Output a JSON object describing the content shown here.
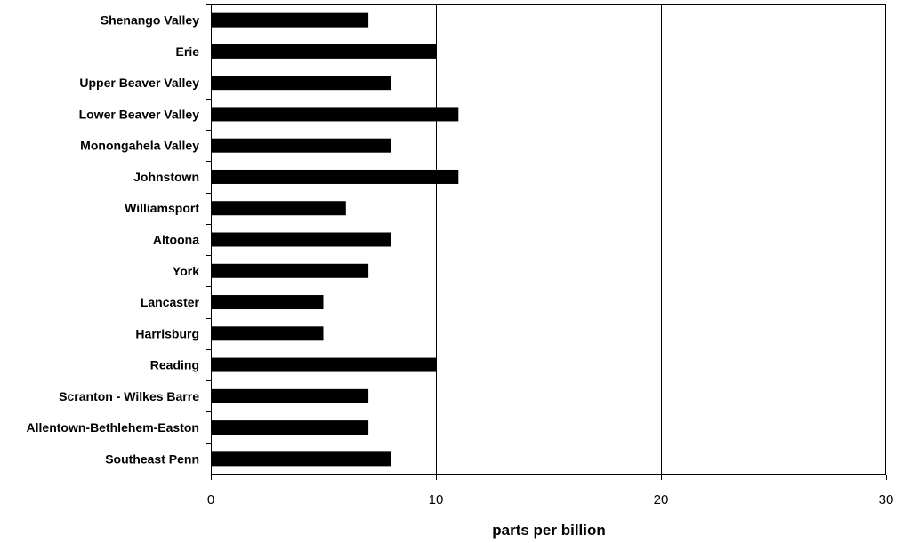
{
  "chart_data": {
    "type": "bar",
    "orientation": "horizontal",
    "categories": [
      "Shenango Valley",
      "Erie",
      "Upper Beaver Valley",
      "Lower Beaver Valley",
      "Monongahela Valley",
      "Johnstown",
      "Williamsport",
      "Altoona",
      "York",
      "Lancaster",
      "Harrisburg",
      "Reading",
      "Scranton - Wilkes Barre",
      "Allentown-Bethlehem-Easton",
      "Southeast Penn"
    ],
    "values": [
      7,
      10,
      8,
      11,
      8,
      11,
      6,
      8,
      7,
      5,
      5,
      10,
      7,
      7,
      8
    ],
    "xlabel": "parts per billion",
    "ylabel": "",
    "xlim": [
      0,
      30
    ],
    "xticks": [
      0,
      10,
      20,
      30
    ],
    "xtick_labels": [
      "0",
      "10",
      "20",
      "30"
    ],
    "grid": "vertical major gridlines",
    "legend": "none",
    "bar_color": "#000000",
    "gridline_color": "#000000",
    "plot_border": true
  }
}
